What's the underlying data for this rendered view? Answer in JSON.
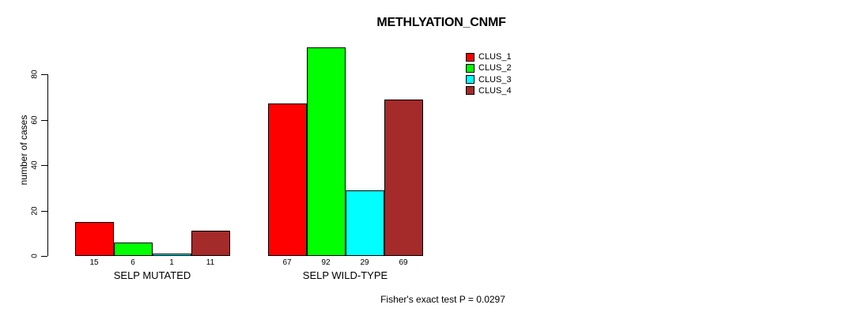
{
  "chart_data": {
    "type": "bar",
    "title": "METHLYATION_CNMF",
    "ylabel": "number of cases",
    "xlabel": "",
    "annotation": "Fisher's exact test P = 0.0297",
    "categories": [
      "SELP MUTATED",
      "SELP WILD-TYPE"
    ],
    "series": [
      {
        "name": "CLUS_1",
        "color": "#FF0000",
        "values": [
          15,
          67
        ]
      },
      {
        "name": "CLUS_2",
        "color": "#00FF00",
        "values": [
          6,
          92
        ]
      },
      {
        "name": "CLUS_3",
        "color": "#00FFFF",
        "values": [
          1,
          29
        ]
      },
      {
        "name": "CLUS_4",
        "color": "#A52A2A",
        "values": [
          11,
          69
        ]
      }
    ],
    "bar_value_labels": [
      [
        15,
        6,
        1,
        11
      ],
      [
        67,
        92,
        29,
        69
      ]
    ],
    "yticks": [
      0,
      20,
      40,
      60,
      80
    ],
    "ylim": [
      0,
      92
    ],
    "grid": false,
    "legend_position": "right-top",
    "bar_border_color": "#000000",
    "text_color": "#000000",
    "background_color": "#FFFFFF"
  }
}
